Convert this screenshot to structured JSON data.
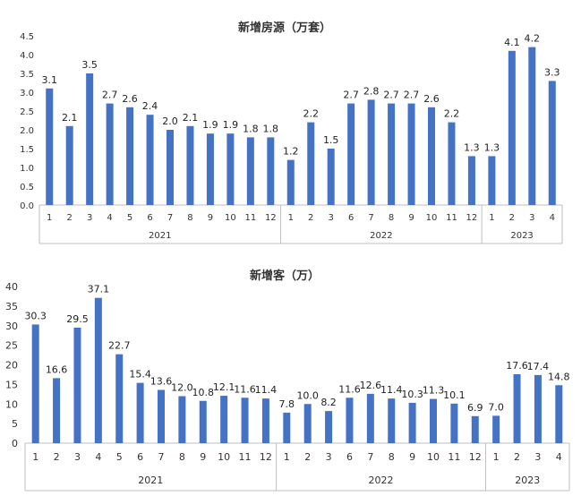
{
  "colors": {
    "bar": "#4472C4",
    "axis": "#BFBFBF",
    "text": "#333333"
  },
  "chart_data": [
    {
      "type": "bar",
      "title": "新增房源（万套）",
      "ylim": [
        0,
        4.5
      ],
      "yticks": [
        "0.0",
        "0.5",
        "1.0",
        "1.5",
        "2.0",
        "2.5",
        "3.0",
        "3.5",
        "4.0",
        "4.5"
      ],
      "categories": [
        "1",
        "2",
        "3",
        "4",
        "5",
        "6",
        "7",
        "8",
        "9",
        "10",
        "11",
        "12",
        "1",
        "2",
        "3",
        "6",
        "7",
        "8",
        "9",
        "10",
        "11",
        "12",
        "1",
        "2",
        "3",
        "4"
      ],
      "groups": [
        {
          "label": "2021",
          "count": 12
        },
        {
          "label": "2022",
          "count": 10
        },
        {
          "label": "2023",
          "count": 4
        }
      ],
      "values": [
        3.1,
        2.1,
        3.5,
        2.7,
        2.6,
        2.4,
        2.0,
        2.1,
        1.9,
        1.9,
        1.8,
        1.8,
        1.2,
        2.2,
        1.5,
        2.7,
        2.8,
        2.7,
        2.7,
        2.6,
        2.2,
        1.3,
        1.3,
        4.1,
        4.2,
        3.3
      ],
      "labels": [
        "3.1",
        "2.1",
        "3.5",
        "2.7",
        "2.6",
        "2.4",
        "2.0",
        "2.1",
        "1.9",
        "1.9",
        "1.8",
        "1.8",
        "1.2",
        "2.2",
        "1.5",
        "2.7",
        "2.8",
        "2.7",
        "2.7",
        "2.6",
        "2.2",
        "1.3",
        "1.3",
        "4.1",
        "4.2",
        "3.3"
      ],
      "grid": false,
      "legend": "none"
    },
    {
      "type": "bar",
      "title": "新增客（万）",
      "ylim": [
        0,
        40
      ],
      "yticks": [
        "0",
        "5",
        "10",
        "15",
        "20",
        "25",
        "30",
        "35",
        "40"
      ],
      "categories": [
        "1",
        "2",
        "3",
        "4",
        "5",
        "6",
        "7",
        "8",
        "9",
        "10",
        "11",
        "12",
        "1",
        "2",
        "3",
        "6",
        "7",
        "8",
        "9",
        "10",
        "11",
        "12",
        "1",
        "2",
        "3",
        "4"
      ],
      "groups": [
        {
          "label": "2021",
          "count": 12
        },
        {
          "label": "2022",
          "count": 10
        },
        {
          "label": "2023",
          "count": 4
        }
      ],
      "values": [
        30.3,
        16.6,
        29.5,
        37.1,
        22.7,
        15.4,
        13.6,
        12.0,
        10.8,
        12.1,
        11.6,
        11.4,
        7.8,
        10.0,
        8.2,
        11.6,
        12.6,
        11.4,
        10.3,
        11.3,
        10.1,
        6.9,
        7.0,
        17.6,
        17.4,
        14.8
      ],
      "labels": [
        "30.3",
        "16.6",
        "29.5",
        "37.1",
        "22.7",
        "15.4",
        "13.6",
        "12.0",
        "10.8",
        "12.1",
        "11.6",
        "11.4",
        "7.8",
        "10.0",
        "8.2",
        "11.6",
        "12.6",
        "11.4",
        "10.3",
        "11.3",
        "10.1",
        "6.9",
        "7.0",
        "17.6",
        "17.4",
        "14.8"
      ],
      "grid": false,
      "legend": "none"
    }
  ]
}
